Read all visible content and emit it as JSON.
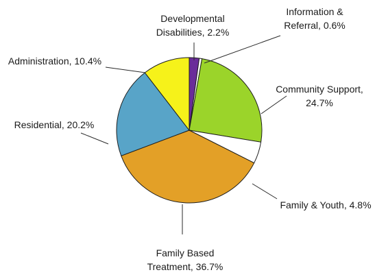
{
  "chart_data": {
    "type": "pie",
    "title": "",
    "slices": [
      {
        "label_lines": [
          "Developmental",
          "Disabilities, 2.2%"
        ],
        "category": "Developmental Disabilities",
        "value": 2.2,
        "color": "#6a2c9a"
      },
      {
        "label_lines": [
          "Information &",
          "Referral, 0.6%"
        ],
        "category": "Information & Referral",
        "value": 0.6,
        "color": "#ffffff"
      },
      {
        "label_lines": [
          "Community Support,",
          "24.7%"
        ],
        "category": "Community Support",
        "value": 24.7,
        "color": "#9bd42a"
      },
      {
        "label_lines": [
          "Family & Youth, 4.8%"
        ],
        "category": "Family & Youth",
        "value": 4.8,
        "color": "#ffffff"
      },
      {
        "label_lines": [
          "Family Based",
          "Treatment, 36.7%"
        ],
        "category": "Family Based Treatment",
        "value": 36.7,
        "color": "#e3a027"
      },
      {
        "label_lines": [
          "Residential, 20.2%"
        ],
        "category": "Residential",
        "value": 20.2,
        "color": "#58a4c8"
      },
      {
        "label_lines": [
          "Administration, 10.4%"
        ],
        "category": "Administration",
        "value": 10.4,
        "color": "#f6f21a"
      }
    ],
    "legend": "none",
    "labels": "outside-with-leader-lines"
  }
}
